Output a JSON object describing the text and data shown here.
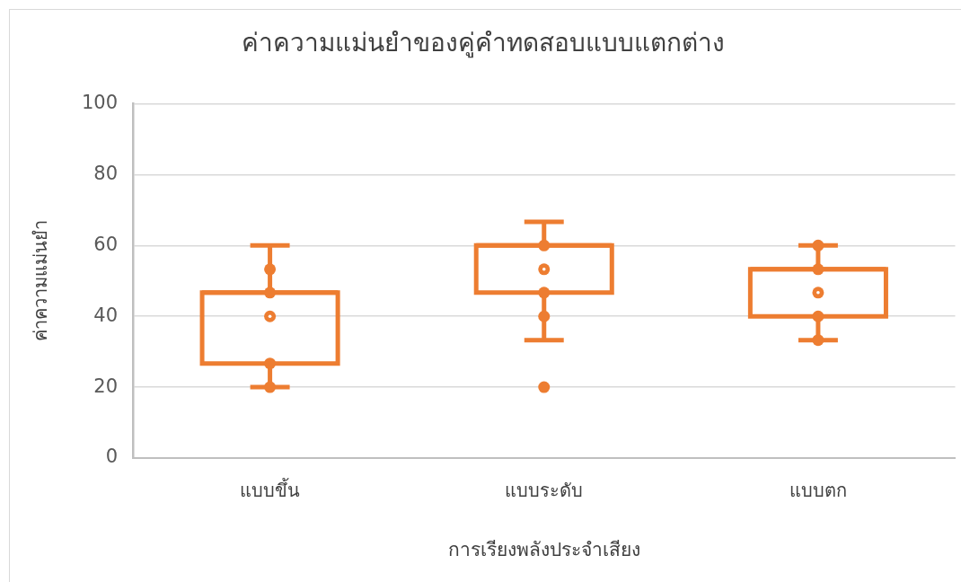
{
  "chart_data": {
    "type": "box",
    "title": "ค่าความแม่นยำของคู่คำทดสอบแบบแตกต่าง",
    "xlabel": "การเรียงพลังประจำเสียง",
    "ylabel": "ค่าความแม่นยำ",
    "categories": [
      "แบบขึ้น",
      "แบบระดับ",
      "แบบตก"
    ],
    "series": [
      {
        "color": "#ed7d31",
        "boxes": [
          {
            "low": 20,
            "q1": 26.7,
            "median": 46.7,
            "q3": 46.7,
            "high": 60,
            "mean": 40
          },
          {
            "low": 33.3,
            "q1": 46.7,
            "median": 60,
            "q3": 60,
            "high": 66.7,
            "mean": 53.3,
            "outliers": [
              20
            ]
          },
          {
            "low": 33.3,
            "q1": 40,
            "median": 53.3,
            "q3": 53.3,
            "high": 60,
            "mean": 46.7
          }
        ]
      },
      {
        "type": "scatter",
        "color": "#ed7d31",
        "x": [
          "แบบขึ้น",
          "แบบขึ้น",
          "แบบขึ้น",
          "แบบขึ้น",
          "แบบระดับ",
          "แบบระดับ",
          "แบบระดับ",
          "แบบตก",
          "แบบตก",
          "แบบตก",
          "แบบตก"
        ],
        "values": [
          53.3,
          46.7,
          26.7,
          20,
          60,
          46.7,
          40,
          60,
          53.3,
          40,
          33.3
        ]
      }
    ],
    "ylim": [
      0,
      100
    ],
    "yticks": [
      0,
      20,
      40,
      60,
      80,
      100
    ],
    "grid": "y",
    "marker": "circle"
  }
}
